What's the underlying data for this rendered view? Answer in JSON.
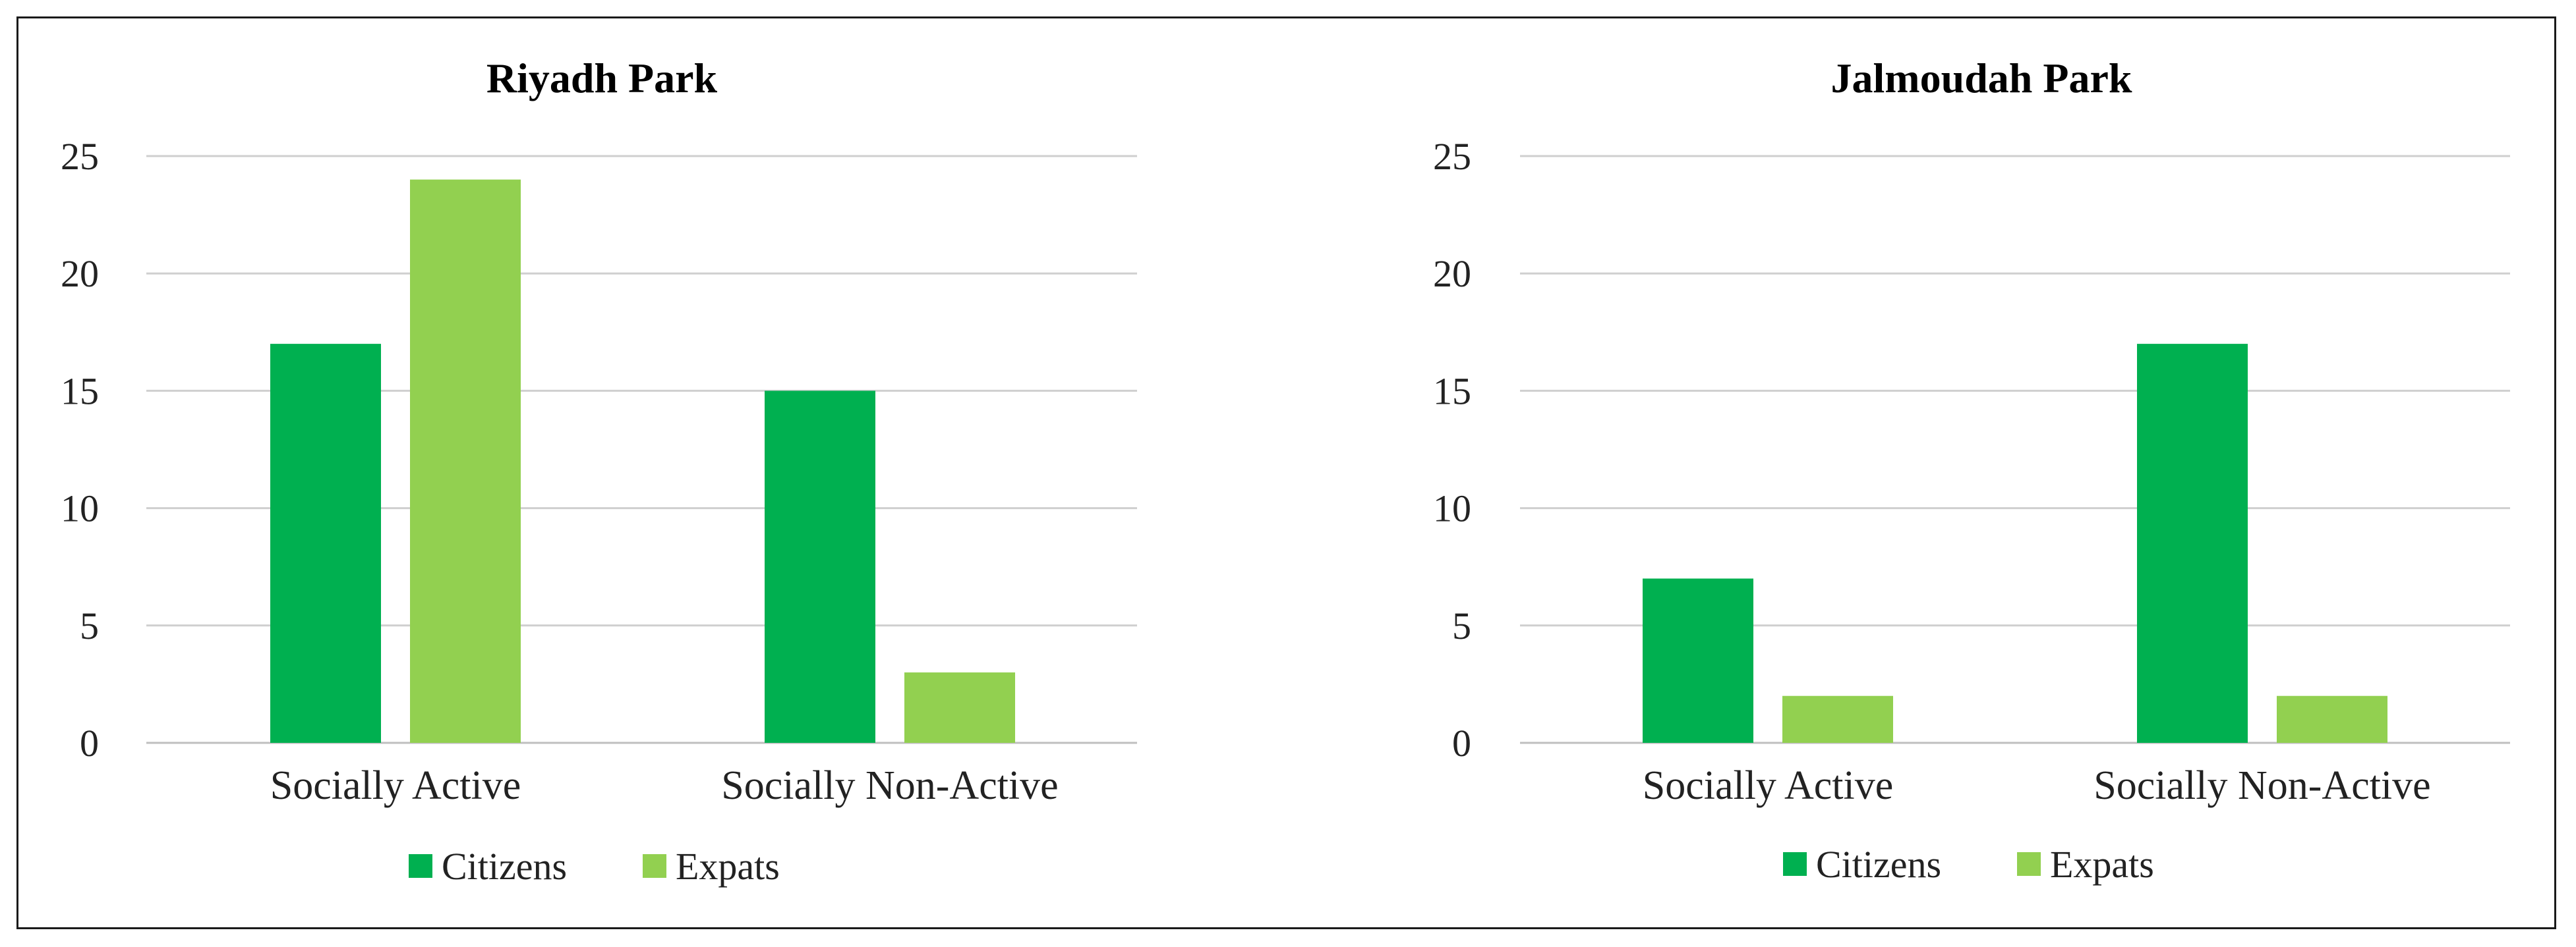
{
  "colors": {
    "citizens": "#00B050",
    "expats": "#92D050"
  },
  "chart_data": [
    {
      "type": "bar",
      "title": "Riyadh Park",
      "categories": [
        "Socially Active",
        "Socially Non-Active"
      ],
      "series": [
        {
          "name": "Citizens",
          "values": [
            17,
            15
          ]
        },
        {
          "name": "Expats",
          "values": [
            24,
            3
          ]
        }
      ],
      "y_ticks": [
        "0",
        "5",
        "10",
        "15",
        "20",
        "25"
      ],
      "ylim": [
        0,
        25
      ],
      "grid": true,
      "legend_position": "bottom"
    },
    {
      "type": "bar",
      "title": "Jalmoudah Park",
      "categories": [
        "Socially Active",
        "Socially Non-Active"
      ],
      "series": [
        {
          "name": "Citizens",
          "values": [
            7,
            17
          ]
        },
        {
          "name": "Expats",
          "values": [
            2,
            2
          ]
        }
      ],
      "y_ticks": [
        "0",
        "5",
        "10",
        "15",
        "20",
        "25"
      ],
      "ylim": [
        0,
        25
      ],
      "grid": true,
      "legend_position": "bottom"
    }
  ]
}
